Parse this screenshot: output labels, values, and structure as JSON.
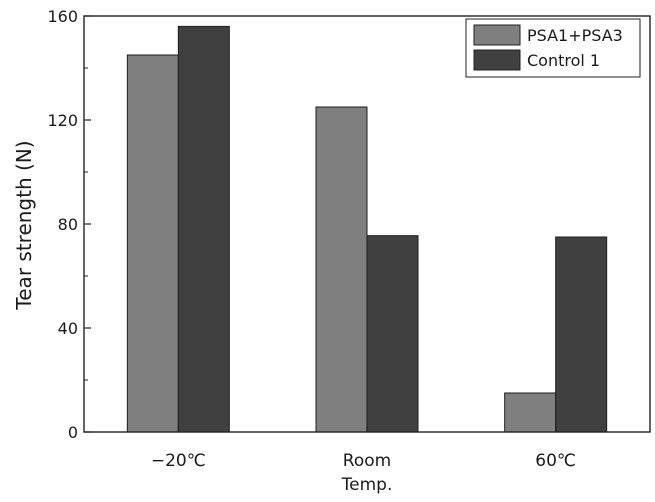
{
  "chart_data": {
    "type": "bar",
    "title": "",
    "xlabel": "",
    "ylabel": "Tear strength (N)",
    "ylim": [
      0,
      160
    ],
    "yticks": [
      0,
      40,
      80,
      120,
      160
    ],
    "categories": [
      {
        "lines": [
          "−20℃"
        ]
      },
      {
        "lines": [
          "Room",
          "Temp."
        ]
      },
      {
        "lines": [
          "60℃"
        ]
      }
    ],
    "series": [
      {
        "name": "PSA1+PSA3",
        "color": "#7f7f7f",
        "values": [
          145,
          125,
          15
        ]
      },
      {
        "name": "Control 1",
        "color": "#404040",
        "values": [
          156,
          75.5,
          75
        ]
      }
    ],
    "legend_position": "top-right",
    "grid": false
  }
}
